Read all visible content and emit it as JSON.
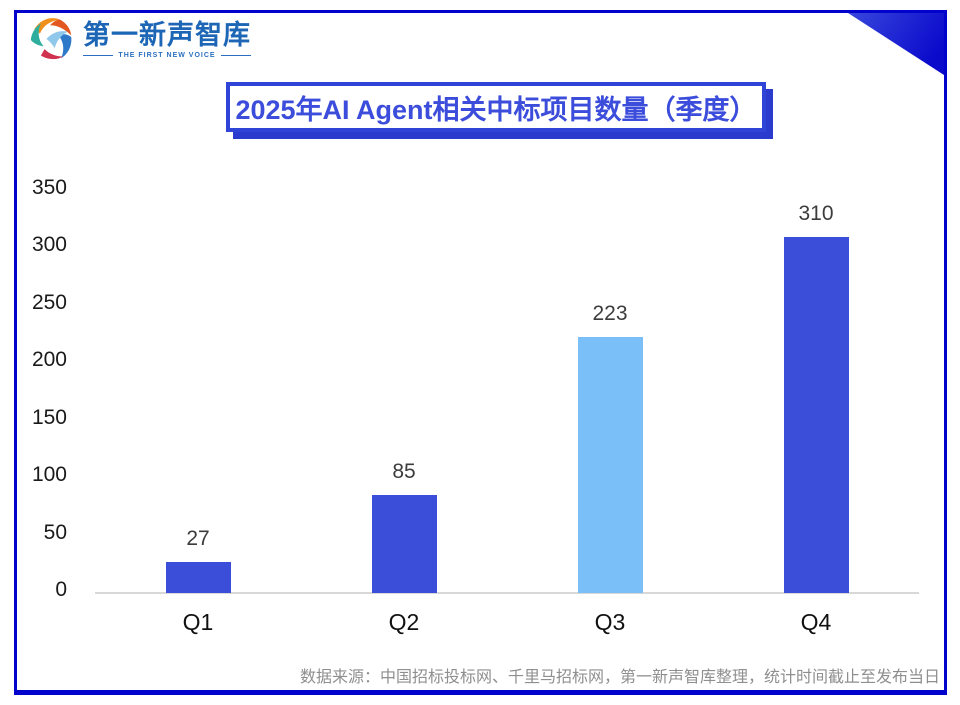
{
  "logo": {
    "name": "第一新声智库",
    "tagline": "THE FIRST NEW VOICE"
  },
  "title": "2025年AI Agent相关中标项目数量（季度）",
  "source_note": "数据来源：中国招标投标网、千里马招标网，第一新声智库整理，统计时间截止至发布当日",
  "colors": {
    "frame": "#0202CD",
    "corner_triangle": "#1420D5",
    "bar_primary": "#3B4ED9",
    "bar_highlight": "#7BBFF8",
    "title_text": "#3C4DDC",
    "title_border": "#3144D8",
    "title_shadow": "#2B3BCD",
    "axis_line": "#D8D8D8",
    "value_label_text": "#3c3c3c",
    "source_text": "#8F8F8F",
    "logo_text": "#1D66B6"
  },
  "chart_data": {
    "type": "bar",
    "title": "2025年AI Agent相关中标项目数量（季度）",
    "categories": [
      "Q1",
      "Q2",
      "Q3",
      "Q4"
    ],
    "values": [
      27,
      85,
      223,
      310
    ],
    "bar_colors": [
      "#3B4ED9",
      "#3B4ED9",
      "#7BBFF8",
      "#3B4ED9"
    ],
    "xlabel": "",
    "ylabel": "",
    "ylim": [
      0,
      350
    ],
    "yticks": [
      0,
      50,
      100,
      150,
      200,
      250,
      300,
      350
    ],
    "grid": false,
    "legend": false,
    "data_labels": true
  }
}
